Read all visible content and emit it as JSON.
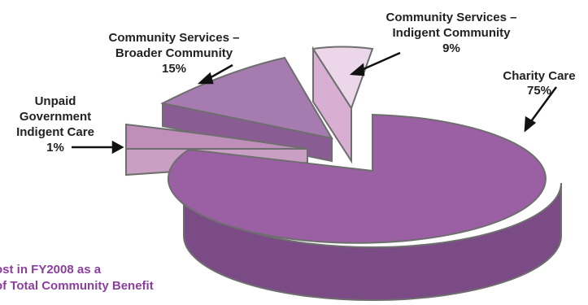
{
  "chart_data": {
    "type": "pie",
    "style": "3d-exploded",
    "title_lines": [
      "ost in FY2008 as a",
      "of Total Community Benefit"
    ],
    "slices": [
      {
        "label_lines": [
          "Charity Care"
        ],
        "value": 75,
        "value_label": "75%",
        "color": "#9a60a3"
      },
      {
        "label_lines": [
          "Community Services –",
          "Indigent Community"
        ],
        "value": 9,
        "value_label": "9%",
        "color": "#ecd7ea"
      },
      {
        "label_lines": [
          "Community Services –",
          "Broader Community"
        ],
        "value": 15,
        "value_label": "15%",
        "color": "#a67bb0"
      },
      {
        "label_lines": [
          "Unpaid",
          "Government",
          "Indigent Care"
        ],
        "value": 1,
        "value_label": "1%",
        "color": "#bf8fba"
      }
    ]
  },
  "colors": {
    "outline": "#6e6e6e",
    "text": "#222222",
    "title": "#8a3f9e"
  }
}
